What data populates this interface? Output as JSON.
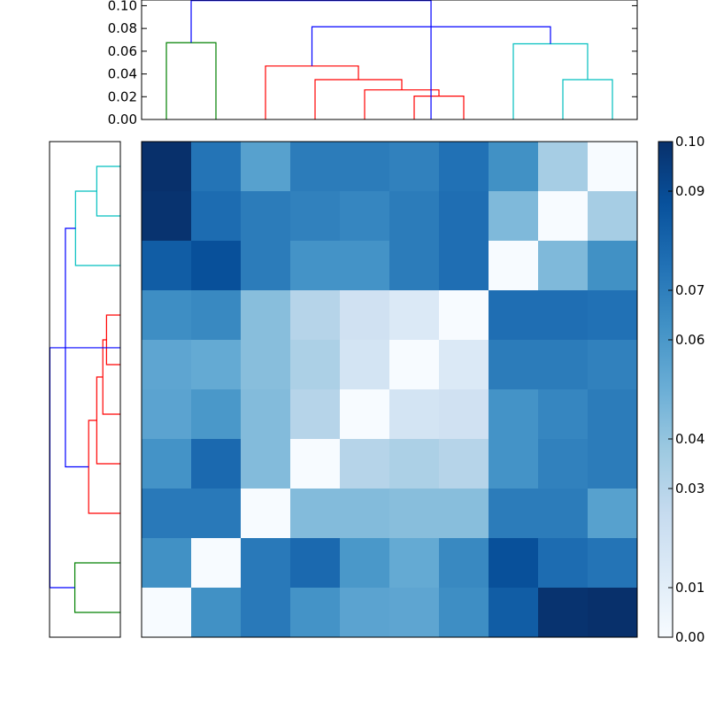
{
  "chart_data": {
    "type": "heatmap",
    "matrix": [
      [
        0.1,
        0.074,
        0.056,
        0.071,
        0.071,
        0.069,
        0.075,
        0.063,
        0.035,
        0.0
      ],
      [
        0.099,
        0.077,
        0.071,
        0.069,
        0.067,
        0.071,
        0.076,
        0.045,
        0.0,
        0.035
      ],
      [
        0.083,
        0.088,
        0.071,
        0.062,
        0.062,
        0.071,
        0.076,
        0.0,
        0.045,
        0.063
      ],
      [
        0.064,
        0.066,
        0.043,
        0.03,
        0.02,
        0.014,
        0.0,
        0.076,
        0.076,
        0.075
      ],
      [
        0.054,
        0.052,
        0.043,
        0.033,
        0.018,
        0.0,
        0.014,
        0.071,
        0.071,
        0.069
      ],
      [
        0.055,
        0.06,
        0.044,
        0.03,
        0.0,
        0.018,
        0.02,
        0.062,
        0.067,
        0.071
      ],
      [
        0.062,
        0.078,
        0.044,
        0.0,
        0.03,
        0.033,
        0.03,
        0.062,
        0.069,
        0.071
      ],
      [
        0.072,
        0.072,
        0.0,
        0.044,
        0.044,
        0.043,
        0.043,
        0.071,
        0.071,
        0.056
      ],
      [
        0.063,
        0.0,
        0.072,
        0.078,
        0.06,
        0.052,
        0.066,
        0.088,
        0.077,
        0.074
      ],
      [
        0.0,
        0.063,
        0.072,
        0.062,
        0.055,
        0.054,
        0.064,
        0.083,
        0.099,
        0.1
      ]
    ],
    "vmin": 0,
    "vmax": 0.1,
    "colormap": "Blues",
    "colorbar": {
      "ticks": [
        0.0,
        0.01,
        0.03,
        0.04,
        0.06,
        0.07,
        0.09,
        0.1
      ],
      "tick_labels": [
        "0.00",
        "0.01",
        "0.03",
        "0.04",
        "0.06",
        "0.07",
        "0.09",
        "0.10"
      ]
    },
    "top_dendrogram": {
      "ylim": [
        0,
        0.105
      ],
      "yticks": [
        0.0,
        0.02,
        0.04,
        0.06,
        0.08,
        0.1
      ],
      "ytick_labels": [
        "0.00",
        "0.02",
        "0.04",
        "0.06",
        "0.08",
        "0.10"
      ],
      "links": [
        {
          "left": 0,
          "right": 1,
          "height": 0.0675,
          "color": "#008000"
        },
        {
          "left": 5,
          "right": 6,
          "height": 0.0205,
          "color": "#ff0000"
        },
        {
          "left": 4,
          "right": 5.5,
          "height": 0.026,
          "color": "#ff0000"
        },
        {
          "left": 3,
          "right": 4.75,
          "height": 0.035,
          "color": "#ff0000"
        },
        {
          "left": 2,
          "right": 3.875,
          "height": 0.047,
          "color": "#ff0000"
        },
        {
          "left": 8,
          "right": 9,
          "height": 0.035,
          "color": "#00bfbf"
        },
        {
          "left": 7,
          "right": 8.5,
          "height": 0.0665,
          "color": "#00bfbf"
        },
        {
          "left": 2.9375,
          "right": 7.75,
          "height": 0.0815,
          "color": "#0000ff"
        },
        {
          "left": 0.5,
          "right": 5.34,
          "height": 0.1045,
          "color": "#0000ff"
        }
      ]
    },
    "left_dendrogram": {
      "links": [
        {
          "a": 0,
          "b": 1,
          "height": 0.0675,
          "color": "#008000"
        },
        {
          "a": 5,
          "b": 6,
          "height": 0.0205,
          "color": "#ff0000"
        },
        {
          "a": 4,
          "b": 5.5,
          "height": 0.026,
          "color": "#ff0000"
        },
        {
          "a": 3,
          "b": 4.75,
          "height": 0.035,
          "color": "#ff0000"
        },
        {
          "a": 2,
          "b": 3.875,
          "height": 0.047,
          "color": "#ff0000"
        },
        {
          "a": 8,
          "b": 9,
          "height": 0.035,
          "color": "#00bfbf"
        },
        {
          "a": 7,
          "b": 8.5,
          "height": 0.0665,
          "color": "#00bfbf"
        },
        {
          "a": 2.9375,
          "b": 7.75,
          "height": 0.0815,
          "color": "#0000ff"
        },
        {
          "a": 0.5,
          "b": 5.34,
          "height": 0.1045,
          "color": "#0000ff"
        }
      ]
    }
  }
}
